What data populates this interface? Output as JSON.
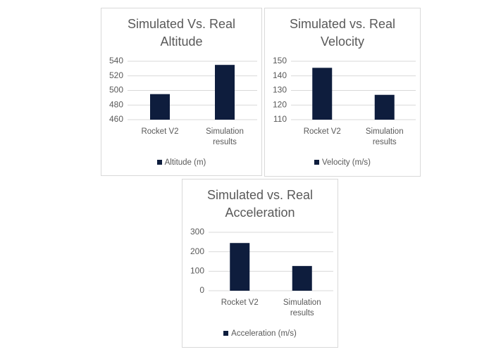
{
  "chart_data": [
    {
      "type": "bar",
      "title": "Simulated Vs. Real Altitude",
      "categories": [
        "Rocket V2",
        "Simulation results"
      ],
      "series": [
        {
          "name": "Altitude (m)",
          "color": "#0e1d3d",
          "values": [
            495,
            535
          ]
        }
      ],
      "ylim": [
        460,
        540
      ],
      "yticks": [
        460,
        480,
        500,
        520,
        540
      ],
      "grid": true,
      "legend": "bottom"
    },
    {
      "type": "bar",
      "title": "Simulated vs. Real Velocity",
      "categories": [
        "Rocket V2",
        "Simulation results"
      ],
      "series": [
        {
          "name": "Velocity (m/s)",
          "color": "#0e1d3d",
          "values": [
            145.5,
            127
          ]
        }
      ],
      "ylim": [
        110,
        150
      ],
      "yticks": [
        110,
        120,
        130,
        140,
        150
      ],
      "grid": true,
      "legend": "bottom"
    },
    {
      "type": "bar",
      "title": "Simulated vs. Real Acceleration",
      "categories": [
        "Rocket V2",
        "Simulation results"
      ],
      "series": [
        {
          "name": "Acceleration (m/s)",
          "color": "#0e1d3d",
          "values": [
            245,
            127
          ]
        }
      ],
      "ylim": [
        0,
        300
      ],
      "yticks": [
        0,
        100,
        200,
        300
      ],
      "grid": true,
      "legend": "bottom"
    }
  ]
}
